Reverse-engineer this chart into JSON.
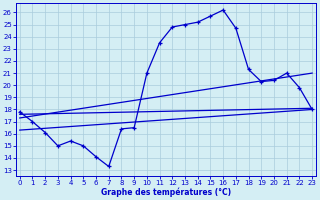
{
  "xlabel": "Graphe des températures (°C)",
  "bg_color": "#d4eef4",
  "grid_color": "#aaccdd",
  "line_color": "#0000cc",
  "xlim": [
    -0.3,
    23.3
  ],
  "ylim": [
    12.5,
    26.8
  ],
  "yticks": [
    13,
    14,
    15,
    16,
    17,
    18,
    19,
    20,
    21,
    22,
    23,
    24,
    25,
    26
  ],
  "xticks": [
    0,
    1,
    2,
    3,
    4,
    5,
    6,
    7,
    8,
    9,
    10,
    11,
    12,
    13,
    14,
    15,
    16,
    17,
    18,
    19,
    20,
    21,
    22,
    23
  ],
  "curve_x": [
    0,
    1,
    2,
    3,
    4,
    5,
    6,
    7,
    8,
    9,
    10,
    11,
    12,
    13,
    14,
    15,
    16,
    17,
    18,
    19,
    20,
    21,
    22,
    23
  ],
  "curve_y": [
    17.8,
    17.0,
    16.1,
    15.0,
    15.4,
    15.0,
    14.1,
    13.3,
    16.4,
    16.5,
    21.0,
    23.5,
    24.8,
    25.0,
    25.2,
    25.7,
    26.2,
    24.7,
    21.3,
    20.3,
    20.4,
    21.0,
    19.8,
    18.0
  ],
  "line1_x": [
    0,
    23
  ],
  "line1_y": [
    17.6,
    18.1
  ],
  "line2_x": [
    0,
    23
  ],
  "line2_y": [
    17.3,
    21.0
  ],
  "line3_x": [
    0,
    23
  ],
  "line3_y": [
    16.3,
    18.0
  ]
}
